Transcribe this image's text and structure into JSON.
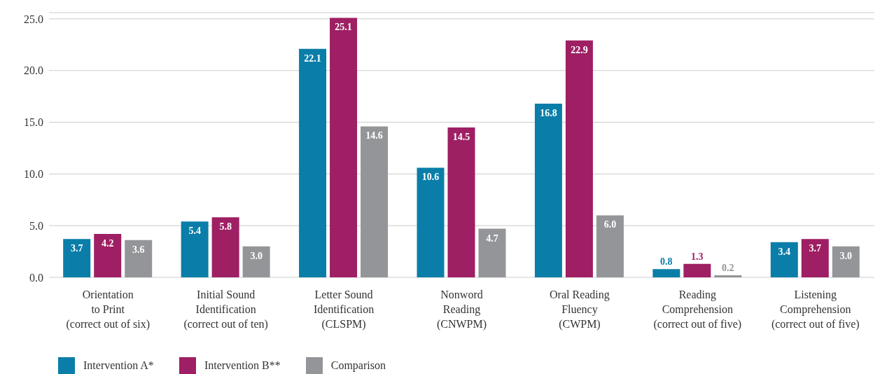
{
  "chart_data": {
    "type": "bar",
    "categories": [
      "Orientation\nto Print\n(correct out of six)",
      "Initial Sound\nIdentification\n(correct out of ten)",
      "Letter Sound\nIdentification\n(CLSPM)",
      "Nonword\nReading\n(CNWPM)",
      "Oral Reading\nFluency\n(CWPM)",
      "Reading\nComprehension\n(correct out of five)",
      "Listening\nComprehension\n(correct out of five)"
    ],
    "series": [
      {
        "name": "Intervention A*",
        "color": "#0a7ea8",
        "values": [
          3.7,
          5.4,
          22.1,
          10.6,
          16.8,
          0.8,
          3.4
        ],
        "value_labels": [
          "3.7",
          "5.4",
          "22.1",
          "10.6",
          "16.8",
          "0.8",
          "3.4"
        ]
      },
      {
        "name": "Intervention B**",
        "color": "#9e1f63",
        "values": [
          4.2,
          5.8,
          25.1,
          14.5,
          22.9,
          1.3,
          3.7
        ],
        "value_labels": [
          "4.2",
          "5.8",
          "25.1",
          "14.5",
          "22.9",
          "1.3",
          "3.7"
        ]
      },
      {
        "name": "Comparison",
        "color": "#939598",
        "values": [
          3.6,
          3.0,
          14.6,
          4.7,
          6.0,
          0.2,
          3.0
        ],
        "value_labels": [
          "3.6",
          "3.0",
          "14.6",
          "4.7",
          "6.0",
          "0.2",
          "3.0"
        ]
      }
    ],
    "ylim": [
      0,
      25.6
    ],
    "yticks": [
      {
        "value": 0,
        "label": "0.0"
      },
      {
        "value": 5,
        "label": "5.0"
      },
      {
        "value": 10,
        "label": "10.0"
      },
      {
        "value": 15,
        "label": "15.0"
      },
      {
        "value": 20,
        "label": "20.0"
      },
      {
        "value": 25,
        "label": "25.0"
      }
    ],
    "grid": "y",
    "legend": "bottom left"
  }
}
